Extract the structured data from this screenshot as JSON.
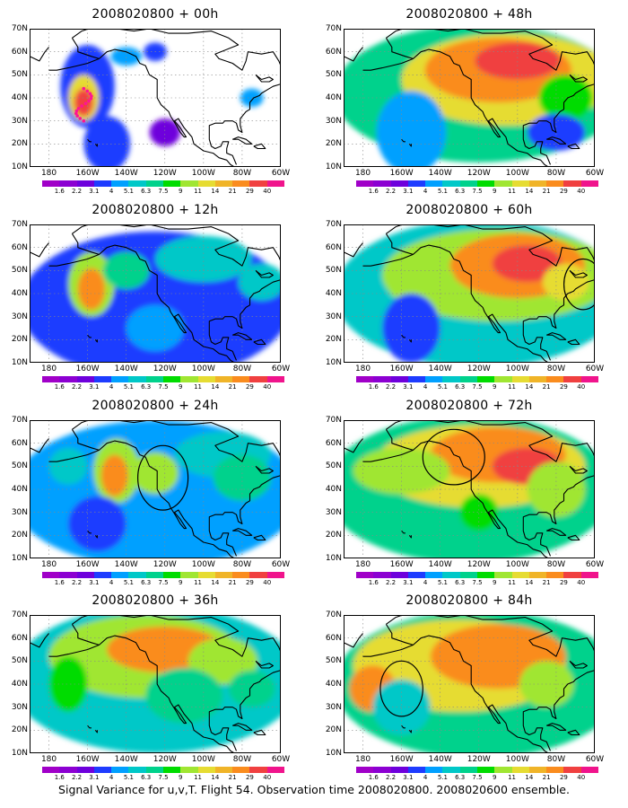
{
  "caption": "Signal Variance for u,v,T. Flight 54. Observation time 2008020800. 2008020600 ensemble.",
  "lat_labels": [
    "70N",
    "60N",
    "50N",
    "40N",
    "30N",
    "20N",
    "10N"
  ],
  "lon_labels": [
    "180",
    "160W",
    "140W",
    "120W",
    "100W",
    "80W",
    "60W"
  ],
  "colorbar": {
    "labels": [
      "1.6",
      "2.2",
      "3.1",
      "4",
      "5.1",
      "6.3",
      "7.5",
      "9",
      "11",
      "14",
      "21",
      "29",
      "40"
    ],
    "colors": [
      "#a000c8",
      "#8c00d2",
      "#6e00dc",
      "#1e3cff",
      "#00a0ff",
      "#00c8c8",
      "#00d28c",
      "#00dc00",
      "#a0e632",
      "#e6dc32",
      "#f0b428",
      "#fa8c1e",
      "#f04040",
      "#f0148c"
    ]
  },
  "panels": [
    {
      "title": "2008020800 + 00h"
    },
    {
      "title": "2008020800 + 48h"
    },
    {
      "title": "2008020800 + 12h"
    },
    {
      "title": "2008020800 + 60h"
    },
    {
      "title": "2008020800 + 24h"
    },
    {
      "title": "2008020800 + 72h"
    },
    {
      "title": "2008020800 + 36h"
    },
    {
      "title": "2008020800 + 84h"
    }
  ]
}
